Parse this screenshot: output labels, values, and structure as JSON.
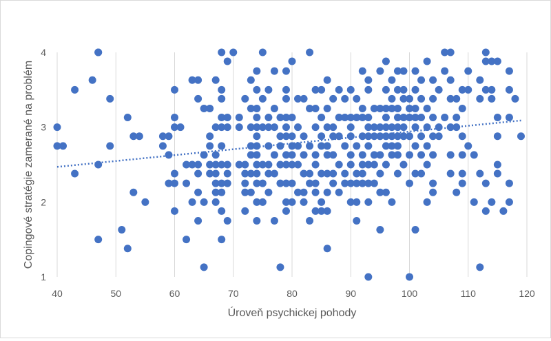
{
  "chart_data": {
    "type": "scatter",
    "xlabel": "Úroveň psychickej pohody",
    "ylabel": "Copingové stratégie zamerané na problém",
    "xlim": [
      40,
      120
    ],
    "ylim": [
      1,
      4
    ],
    "xticks": [
      "40",
      "50",
      "60",
      "70",
      "80",
      "90",
      "100",
      "110",
      "120"
    ],
    "yticks": [
      "1",
      "2",
      "3",
      "4"
    ],
    "grid": "vertical gridlines only",
    "legend": "none",
    "marker_color": "#4472C4",
    "trendline": {
      "style": "dotted linear",
      "color": "#4472C4",
      "x": [
        40,
        119
      ],
      "y": [
        2.47,
        3.09
      ]
    },
    "points": [
      [
        40,
        3
      ],
      [
        40,
        2.75
      ],
      [
        41,
        2.75
      ],
      [
        43,
        3.5
      ],
      [
        43,
        2.38
      ],
      [
        46,
        3.63
      ],
      [
        47,
        4
      ],
      [
        47,
        4
      ],
      [
        47,
        2.5
      ],
      [
        47,
        1.5
      ],
      [
        49,
        3.38
      ],
      [
        49,
        2.75
      ],
      [
        51,
        1.63
      ],
      [
        52,
        3.13
      ],
      [
        52,
        1.38
      ],
      [
        53,
        2.88
      ],
      [
        53,
        2.13
      ],
      [
        54,
        2.88
      ],
      [
        55,
        2
      ],
      [
        58,
        2.88
      ],
      [
        58,
        2.75
      ],
      [
        59,
        2.88
      ],
      [
        59,
        2.63
      ],
      [
        59,
        2.25
      ],
      [
        60,
        3.5
      ],
      [
        60,
        3.13
      ],
      [
        60,
        3
      ],
      [
        60,
        2.38
      ],
      [
        60,
        2.25
      ],
      [
        60,
        1.88
      ],
      [
        61,
        3
      ],
      [
        62,
        2.5
      ],
      [
        62,
        2.25
      ],
      [
        62,
        1.5
      ],
      [
        63,
        3.63
      ],
      [
        63,
        2.5
      ],
      [
        63,
        2
      ],
      [
        64,
        3.63
      ],
      [
        64,
        3.38
      ],
      [
        64,
        2.5
      ],
      [
        64,
        2.38
      ],
      [
        64,
        2.13
      ],
      [
        64,
        1.75
      ],
      [
        65,
        3.25
      ],
      [
        65,
        2.63
      ],
      [
        65,
        2
      ],
      [
        65,
        1.13
      ],
      [
        66,
        3.25
      ],
      [
        66,
        2.88
      ],
      [
        66,
        2.75
      ],
      [
        66,
        2.5
      ],
      [
        66,
        2.38
      ],
      [
        67,
        3.63
      ],
      [
        67,
        3
      ],
      [
        67,
        2.63
      ],
      [
        67,
        2.5
      ],
      [
        67,
        2.38
      ],
      [
        67,
        2.25
      ],
      [
        67,
        2.13
      ],
      [
        67,
        2
      ],
      [
        68,
        4
      ],
      [
        68,
        3.5
      ],
      [
        68,
        3.38
      ],
      [
        68,
        3.13
      ],
      [
        68,
        3
      ],
      [
        68,
        2.75
      ],
      [
        68,
        2.5
      ],
      [
        68,
        2.25
      ],
      [
        68,
        2.13
      ],
      [
        68,
        1.88
      ],
      [
        68,
        1.5
      ],
      [
        69,
        3.88
      ],
      [
        69,
        3.13
      ],
      [
        69,
        3
      ],
      [
        69,
        2.5
      ],
      [
        69,
        2.38
      ],
      [
        69,
        2.25
      ],
      [
        69,
        1.75
      ],
      [
        70,
        4
      ],
      [
        71,
        3.13
      ],
      [
        71,
        3
      ],
      [
        71,
        2.5
      ],
      [
        72,
        3.38
      ],
      [
        72,
        2.5
      ],
      [
        72,
        2.38
      ],
      [
        72,
        2.25
      ],
      [
        72,
        2.13
      ],
      [
        72,
        1.88
      ],
      [
        73,
        3.63
      ],
      [
        73,
        3.25
      ],
      [
        73,
        3
      ],
      [
        73,
        2.75
      ],
      [
        73,
        2.63
      ],
      [
        73,
        2.38
      ],
      [
        73,
        2.13
      ],
      [
        74,
        3.75
      ],
      [
        74,
        3.5
      ],
      [
        74,
        3.25
      ],
      [
        74,
        3.13
      ],
      [
        74,
        3
      ],
      [
        74,
        2.88
      ],
      [
        74,
        2.75
      ],
      [
        74,
        2.63
      ],
      [
        74,
        2.5
      ],
      [
        74,
        2.38
      ],
      [
        74,
        2.25
      ],
      [
        74,
        2
      ],
      [
        74,
        1.75
      ],
      [
        75,
        4
      ],
      [
        75,
        3.38
      ],
      [
        75,
        3
      ],
      [
        75,
        2.5
      ],
      [
        75,
        2.25
      ],
      [
        75,
        2
      ],
      [
        76,
        3.5
      ],
      [
        76,
        3.13
      ],
      [
        76,
        3
      ],
      [
        76,
        2.75
      ],
      [
        76,
        2.5
      ],
      [
        76,
        2.38
      ],
      [
        76,
        2.13
      ],
      [
        77,
        3.75
      ],
      [
        77,
        3.25
      ],
      [
        77,
        3
      ],
      [
        77,
        2.63
      ],
      [
        77,
        2.38
      ],
      [
        77,
        1.75
      ],
      [
        78,
        3.13
      ],
      [
        78,
        2.88
      ],
      [
        78,
        2.75
      ],
      [
        78,
        2.5
      ],
      [
        78,
        2.25
      ],
      [
        78,
        1.13
      ],
      [
        79,
        3.75
      ],
      [
        79,
        3.5
      ],
      [
        79,
        3.38
      ],
      [
        79,
        3.13
      ],
      [
        79,
        3
      ],
      [
        79,
        2.88
      ],
      [
        79,
        2.63
      ],
      [
        79,
        2.5
      ],
      [
        79,
        2.25
      ],
      [
        79,
        2
      ],
      [
        79,
        1.88
      ],
      [
        80,
        3.88
      ],
      [
        80,
        3.13
      ],
      [
        80,
        2.88
      ],
      [
        80,
        2.75
      ],
      [
        80,
        2.63
      ],
      [
        80,
        2.5
      ],
      [
        80,
        2.25
      ],
      [
        80,
        2
      ],
      [
        81,
        3.38
      ],
      [
        81,
        3
      ],
      [
        81,
        2.75
      ],
      [
        81,
        2.5
      ],
      [
        81,
        2.13
      ],
      [
        82,
        3.38
      ],
      [
        82,
        2.88
      ],
      [
        82,
        2.63
      ],
      [
        82,
        2.38
      ],
      [
        82,
        2.13
      ],
      [
        82,
        2
      ],
      [
        83,
        4
      ],
      [
        83,
        3.25
      ],
      [
        83,
        2.75
      ],
      [
        83,
        2.38
      ],
      [
        83,
        2.25
      ],
      [
        83,
        1.75
      ],
      [
        84,
        3.5
      ],
      [
        84,
        3.25
      ],
      [
        84,
        3
      ],
      [
        84,
        2.63
      ],
      [
        84,
        2.5
      ],
      [
        84,
        2.25
      ],
      [
        84,
        2.13
      ],
      [
        84,
        1.88
      ],
      [
        85,
        3.5
      ],
      [
        85,
        3.13
      ],
      [
        85,
        2.88
      ],
      [
        85,
        2.75
      ],
      [
        85,
        2.38
      ],
      [
        85,
        2
      ],
      [
        85,
        1.88
      ],
      [
        86,
        3.63
      ],
      [
        86,
        3.25
      ],
      [
        86,
        3
      ],
      [
        86,
        2.75
      ],
      [
        86,
        2.63
      ],
      [
        86,
        2.38
      ],
      [
        86,
        2.13
      ],
      [
        86,
        1.88
      ],
      [
        86,
        1.38
      ],
      [
        87,
        3.38
      ],
      [
        87,
        3
      ],
      [
        87,
        2.88
      ],
      [
        87,
        2.63
      ],
      [
        87,
        2.38
      ],
      [
        87,
        2.25
      ],
      [
        88,
        3.5
      ],
      [
        88,
        3.13
      ],
      [
        88,
        2.88
      ],
      [
        88,
        2.5
      ],
      [
        88,
        2.13
      ],
      [
        89,
        3.38
      ],
      [
        89,
        3.13
      ],
      [
        89,
        2.75
      ],
      [
        89,
        2.38
      ],
      [
        89,
        2.25
      ],
      [
        90,
        3.5
      ],
      [
        90,
        3.13
      ],
      [
        90,
        3
      ],
      [
        90,
        2.88
      ],
      [
        90,
        2.63
      ],
      [
        90,
        2.5
      ],
      [
        90,
        2.25
      ],
      [
        90,
        2
      ],
      [
        91,
        3.38
      ],
      [
        91,
        3.13
      ],
      [
        91,
        2.75
      ],
      [
        91,
        2.38
      ],
      [
        91,
        2.25
      ],
      [
        91,
        2
      ],
      [
        91,
        1.75
      ],
      [
        92,
        3.75
      ],
      [
        92,
        3.25
      ],
      [
        92,
        3.13
      ],
      [
        92,
        2.88
      ],
      [
        92,
        2.63
      ],
      [
        92,
        2.5
      ],
      [
        92,
        2.38
      ],
      [
        92,
        2.25
      ],
      [
        93,
        3.63
      ],
      [
        93,
        3.5
      ],
      [
        93,
        3.13
      ],
      [
        93,
        3
      ],
      [
        93,
        2.88
      ],
      [
        93,
        2.75
      ],
      [
        93,
        2.5
      ],
      [
        93,
        2.25
      ],
      [
        93,
        2
      ],
      [
        93,
        1
      ],
      [
        94,
        3.25
      ],
      [
        94,
        3
      ],
      [
        94,
        2.88
      ],
      [
        94,
        2.63
      ],
      [
        94,
        2.5
      ],
      [
        94,
        2.25
      ],
      [
        95,
        3.75
      ],
      [
        95,
        3.25
      ],
      [
        95,
        3
      ],
      [
        95,
        2.88
      ],
      [
        95,
        2.63
      ],
      [
        95,
        2.38
      ],
      [
        95,
        2.13
      ],
      [
        95,
        1.63
      ],
      [
        96,
        3.88
      ],
      [
        96,
        3.5
      ],
      [
        96,
        3.25
      ],
      [
        96,
        3.13
      ],
      [
        96,
        3
      ],
      [
        96,
        2.88
      ],
      [
        96,
        2.75
      ],
      [
        96,
        2.5
      ],
      [
        96,
        2.13
      ],
      [
        97,
        3.63
      ],
      [
        97,
        3.38
      ],
      [
        97,
        3.25
      ],
      [
        97,
        3
      ],
      [
        97,
        2.88
      ],
      [
        97,
        2.75
      ],
      [
        97,
        2.63
      ],
      [
        97,
        2
      ],
      [
        98,
        3.75
      ],
      [
        98,
        3.5
      ],
      [
        98,
        3.25
      ],
      [
        98,
        3.13
      ],
      [
        98,
        3
      ],
      [
        98,
        2.88
      ],
      [
        98,
        2.75
      ],
      [
        98,
        2.63
      ],
      [
        98,
        2.38
      ],
      [
        99,
        3.75
      ],
      [
        99,
        3.5
      ],
      [
        99,
        3.38
      ],
      [
        99,
        3.13
      ],
      [
        99,
        3
      ],
      [
        99,
        2.88
      ],
      [
        99,
        2.5
      ],
      [
        100,
        3.38
      ],
      [
        100,
        3.25
      ],
      [
        100,
        3.13
      ],
      [
        100,
        2.88
      ],
      [
        100,
        2.63
      ],
      [
        100,
        2.25
      ],
      [
        100,
        1
      ],
      [
        101,
        3.75
      ],
      [
        101,
        3.5
      ],
      [
        101,
        3.25
      ],
      [
        101,
        3.13
      ],
      [
        101,
        3
      ],
      [
        101,
        2.75
      ],
      [
        101,
        2.38
      ],
      [
        101,
        1.63
      ],
      [
        102,
        3.63
      ],
      [
        102,
        3.38
      ],
      [
        102,
        3.13
      ],
      [
        102,
        2.88
      ],
      [
        102,
        2.63
      ],
      [
        102,
        2.38
      ],
      [
        103,
        3.88
      ],
      [
        103,
        3.25
      ],
      [
        103,
        3
      ],
      [
        103,
        2.75
      ],
      [
        103,
        2.5
      ],
      [
        103,
        2
      ],
      [
        104,
        3.63
      ],
      [
        104,
        3.38
      ],
      [
        104,
        3.13
      ],
      [
        104,
        2.88
      ],
      [
        104,
        2.63
      ],
      [
        104,
        2.25
      ],
      [
        104,
        2.13
      ],
      [
        105,
        3.5
      ],
      [
        105,
        3
      ],
      [
        105,
        2.88
      ],
      [
        106,
        4
      ],
      [
        106,
        3.75
      ],
      [
        106,
        3.13
      ],
      [
        107,
        4
      ],
      [
        107,
        3.63
      ],
      [
        107,
        3.38
      ],
      [
        107,
        3
      ],
      [
        107,
        2.63
      ],
      [
        107,
        2.38
      ],
      [
        108,
        3.38
      ],
      [
        108,
        3.13
      ],
      [
        108,
        3
      ],
      [
        108,
        2.13
      ],
      [
        109,
        3.5
      ],
      [
        109,
        3.25
      ],
      [
        109,
        2.88
      ],
      [
        109,
        2.63
      ],
      [
        109,
        2.38
      ],
      [
        109,
        2.25
      ],
      [
        110,
        3.75
      ],
      [
        110,
        3.5
      ],
      [
        110,
        2.75
      ],
      [
        111,
        2.63
      ],
      [
        111,
        2
      ],
      [
        112,
        3.63
      ],
      [
        112,
        3.38
      ],
      [
        112,
        2.38
      ],
      [
        112,
        1.13
      ],
      [
        113,
        4
      ],
      [
        113,
        3.88
      ],
      [
        113,
        3.5
      ],
      [
        113,
        2.25
      ],
      [
        113,
        1.88
      ],
      [
        114,
        3.88
      ],
      [
        114,
        3.5
      ],
      [
        114,
        3.38
      ],
      [
        114,
        2
      ],
      [
        115,
        3.88
      ],
      [
        115,
        3.13
      ],
      [
        115,
        2.88
      ],
      [
        115,
        2.5
      ],
      [
        115,
        2.38
      ],
      [
        116,
        1.88
      ],
      [
        117,
        3.75
      ],
      [
        117,
        3.5
      ],
      [
        117,
        3.13
      ],
      [
        117,
        2.25
      ],
      [
        117,
        2
      ],
      [
        118,
        3.38
      ],
      [
        119,
        2.88
      ]
    ]
  }
}
